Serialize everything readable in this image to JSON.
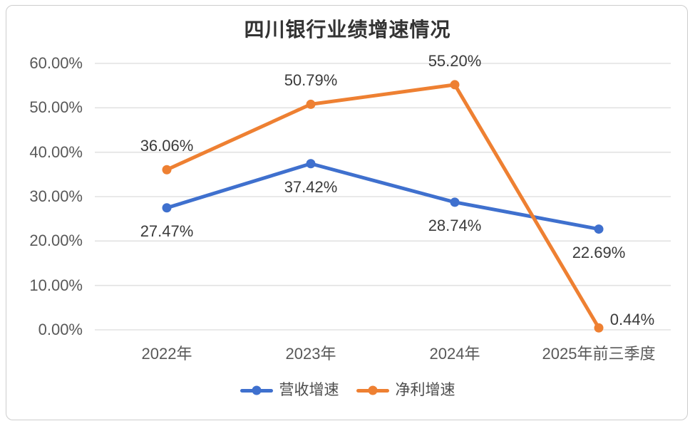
{
  "chart_data": {
    "type": "line",
    "title": "四川银行业绩增速情况",
    "categories": [
      "2022年",
      "2023年",
      "2024年",
      "2025年前三季度"
    ],
    "series": [
      {
        "name": "营收增速",
        "color": "#3f70ce",
        "values": [
          27.47,
          37.42,
          28.74,
          22.69
        ],
        "labels": [
          "27.47%",
          "37.42%",
          "28.74%",
          "22.69%"
        ]
      },
      {
        "name": "净利增速",
        "color": "#ee8032",
        "values": [
          36.06,
          50.79,
          55.2,
          0.44
        ],
        "labels": [
          "36.06%",
          "50.79%",
          "55.20%",
          "0.44%"
        ]
      }
    ],
    "y_axis": {
      "min": 0,
      "max": 60,
      "step": 10,
      "tick_labels": [
        "0.00%",
        "10.00%",
        "20.00%",
        "30.00%",
        "40.00%",
        "50.00%",
        "60.00%"
      ]
    },
    "grid": true,
    "legend_position": "bottom",
    "marker": "circle"
  }
}
